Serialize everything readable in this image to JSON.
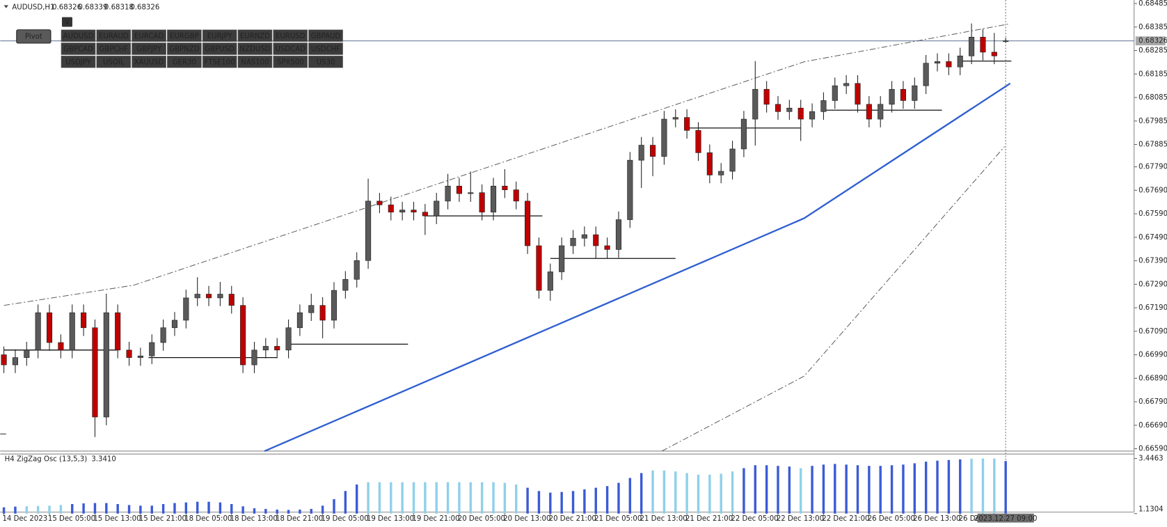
{
  "header": {
    "symbol": "AUDUSD,H1"
  },
  "toolbar": {
    "menu": "v",
    "pivot": "Pivot",
    "active_index": 0,
    "symbols": [
      "AUDUSD",
      "EURAUD",
      "EURCAD",
      "EURGBP",
      "EURJPY",
      "EURNZD",
      "EURUSD",
      "GBPAUD",
      "GBPCAD",
      "GBPCHF",
      "GBPJPY",
      "GBPNZD",
      "GBPUSD",
      "NZDUSD",
      "USDCAD",
      "USDCHF",
      "USDJPY",
      "USOIL",
      "XAUUSD",
      "GER30",
      "FTSE100",
      "NAS100",
      "SPX500",
      "US30"
    ]
  },
  "chart_data": [
    {
      "type": "candlestick",
      "up_color": "#5a5a5a",
      "down_color": "#c00000",
      "categories": [
        "14 Dec 2023",
        null,
        null,
        null,
        "15 Dec 05:00",
        null,
        null,
        null,
        "15 Dec 13:00",
        null,
        null,
        null,
        "15 Dec 21:00",
        null,
        null,
        null,
        "18 Dec 05:00",
        null,
        null,
        null,
        "18 Dec 13:00",
        null,
        null,
        null,
        "18 Dec 21:00",
        null,
        null,
        null,
        "19 Dec 05:00",
        null,
        null,
        null,
        "19 Dec 13:00",
        null,
        null,
        null,
        "19 Dec 21:00",
        null,
        null,
        null,
        "20 Dec 05:00",
        null,
        null,
        null,
        "20 Dec 13:00",
        null,
        null,
        null,
        "20 Dec 21:00",
        null,
        null,
        null,
        "21 Dec 05:00",
        null,
        null,
        null,
        "21 Dec 13:00",
        null,
        null,
        null,
        "21 Dec 21:00",
        null,
        null,
        null,
        "22 Dec 05:00",
        null,
        null,
        null,
        "22 Dec 13:00",
        null,
        null,
        null,
        "22 Dec 21:00",
        null,
        null,
        null,
        "26 Dec 05:00",
        null,
        null,
        null,
        "26 Dec 13:00",
        null,
        null,
        null,
        "26 Dec 21:00",
        null,
        null,
        null,
        "2023.12.27 09:00"
      ],
      "open": [
        0.6699,
        0.66947,
        0.66978,
        0.6701,
        0.67169,
        0.67042,
        0.6701,
        0.67169,
        0.67105,
        0.66725,
        0.67169,
        0.6701,
        0.66978,
        0.66985,
        0.67042,
        0.67105,
        0.67137,
        0.67232,
        0.67248,
        0.67232,
        0.67248,
        0.672,
        0.66947,
        0.6701,
        0.67026,
        0.6701,
        0.67105,
        0.67169,
        0.672,
        0.67137,
        0.67264,
        0.67311,
        0.67391,
        0.67644,
        0.67628,
        0.67597,
        0.67606,
        0.67597,
        0.67581,
        0.67644,
        0.67708,
        0.67676,
        0.6768,
        0.67597,
        0.67708,
        0.67692,
        0.67644,
        0.67454,
        0.67264,
        0.67343,
        0.67454,
        0.67486,
        0.67501,
        0.67454,
        0.67438,
        0.67565,
        0.67818,
        0.67882,
        0.67834,
        0.67993,
        0.68,
        0.67945,
        0.6785,
        0.67755,
        0.67771,
        0.67866,
        0.67993,
        0.6812,
        0.68056,
        0.68025,
        0.6804,
        0.67993,
        0.68025,
        0.68072,
        0.68135,
        0.68145,
        0.68056,
        0.67993,
        0.68056,
        0.6812,
        0.68072,
        0.68135,
        0.68231,
        0.68238,
        0.68215,
        0.68262,
        0.68342,
        0.68278,
        0.68326
      ],
      "high": [
        0.67025,
        0.67013,
        0.67045,
        0.67204,
        0.67204,
        0.67077,
        0.67204,
        0.67204,
        0.6714,
        0.6725,
        0.67204,
        0.67045,
        0.6702,
        0.67077,
        0.6714,
        0.67172,
        0.67267,
        0.6732,
        0.67283,
        0.673,
        0.67283,
        0.67235,
        0.67045,
        0.67061,
        0.67061,
        0.6714,
        0.67204,
        0.6725,
        0.67235,
        0.67299,
        0.67346,
        0.67426,
        0.6774,
        0.67679,
        0.67663,
        0.67641,
        0.67641,
        0.67632,
        0.67679,
        0.6776,
        0.67743,
        0.6777,
        0.67715,
        0.67743,
        0.6778,
        0.67727,
        0.67679,
        0.67489,
        0.67378,
        0.67489,
        0.67521,
        0.67536,
        0.67536,
        0.67489,
        0.676,
        0.67853,
        0.67917,
        0.67917,
        0.68028,
        0.68035,
        0.68035,
        0.6798,
        0.67885,
        0.67806,
        0.67901,
        0.68028,
        0.6824,
        0.68155,
        0.68091,
        0.68075,
        0.68075,
        0.6806,
        0.68107,
        0.6817,
        0.6818,
        0.6818,
        0.68091,
        0.68091,
        0.68155,
        0.68155,
        0.6817,
        0.68266,
        0.68273,
        0.68273,
        0.68297,
        0.684,
        0.68377,
        0.6836,
        0.68339
      ],
      "low": [
        0.66912,
        0.66912,
        0.66943,
        0.66975,
        0.67007,
        0.66975,
        0.66975,
        0.6707,
        0.6664,
        0.6669,
        0.66975,
        0.66943,
        0.66943,
        0.6695,
        0.67007,
        0.6707,
        0.67102,
        0.67197,
        0.67197,
        0.67197,
        0.67165,
        0.66912,
        0.66912,
        0.66975,
        0.66975,
        0.66975,
        0.6707,
        0.67134,
        0.6706,
        0.67102,
        0.67229,
        0.67276,
        0.67356,
        0.67593,
        0.67562,
        0.67562,
        0.67562,
        0.675,
        0.67546,
        0.67609,
        0.67641,
        0.67641,
        0.67562,
        0.67562,
        0.67657,
        0.67609,
        0.67419,
        0.67229,
        0.6722,
        0.67308,
        0.67419,
        0.67451,
        0.674,
        0.674,
        0.67403,
        0.6753,
        0.677,
        0.6775,
        0.67799,
        0.67958,
        0.6791,
        0.67815,
        0.6772,
        0.6772,
        0.67736,
        0.67831,
        0.6788,
        0.68021,
        0.6799,
        0.6799,
        0.679,
        0.67958,
        0.6799,
        0.68037,
        0.681,
        0.68021,
        0.67958,
        0.67958,
        0.68021,
        0.68037,
        0.68037,
        0.681,
        0.68196,
        0.6818,
        0.6818,
        0.68227,
        0.68243,
        0.68227,
        0.68318
      ],
      "close": [
        0.66947,
        0.66978,
        0.6701,
        0.67169,
        0.67042,
        0.6701,
        0.67169,
        0.67105,
        0.66725,
        0.67169,
        0.6701,
        0.66978,
        0.66985,
        0.67042,
        0.67105,
        0.67137,
        0.67232,
        0.67248,
        0.67232,
        0.67248,
        0.672,
        0.66947,
        0.6701,
        0.67026,
        0.6701,
        0.67105,
        0.67169,
        0.672,
        0.67137,
        0.67264,
        0.67311,
        0.67391,
        0.67644,
        0.67628,
        0.67597,
        0.67606,
        0.67597,
        0.67581,
        0.67644,
        0.67708,
        0.67676,
        0.6768,
        0.67597,
        0.67708,
        0.67692,
        0.67644,
        0.67454,
        0.67264,
        0.67343,
        0.67454,
        0.67486,
        0.67501,
        0.67454,
        0.67438,
        0.67565,
        0.67818,
        0.67882,
        0.67834,
        0.67993,
        0.68,
        0.67945,
        0.6785,
        0.67755,
        0.67771,
        0.67866,
        0.67993,
        0.6812,
        0.68056,
        0.68025,
        0.6804,
        0.67993,
        0.68025,
        0.68072,
        0.68135,
        0.68145,
        0.68056,
        0.67993,
        0.68056,
        0.6812,
        0.68072,
        0.68135,
        0.68231,
        0.68238,
        0.68215,
        0.68262,
        0.68342,
        0.68278,
        0.68262,
        0.68326
      ],
      "ylim": [
        0.6658,
        0.685
      ],
      "yticks": [
        0.68485,
        0.68385,
        0.68285,
        0.68185,
        0.68085,
        0.67985,
        0.67885,
        {
          "value": 0.6779,
          "label": "0.67790"
        },
        {
          "value": 0.6769,
          "label": "0.67690"
        },
        {
          "value": 0.6759,
          "label": "0.67590"
        },
        {
          "value": 0.6749,
          "label": "0.67490"
        },
        {
          "value": 0.6739,
          "label": "0.67390"
        },
        {
          "value": 0.6729,
          "label": "0.67290"
        },
        {
          "value": 0.6719,
          "label": "0.67190"
        },
        {
          "value": 0.6709,
          "label": "0.67090"
        },
        {
          "value": 0.6699,
          "label": "0.66990"
        },
        {
          "value": 0.6689,
          "label": "0.66890"
        },
        {
          "value": 0.6679,
          "label": "0.66790"
        },
        {
          "value": 0.6669,
          "label": "0.66690"
        },
        {
          "value": 0.6659,
          "label": "0.66590"
        }
      ],
      "overlays": [
        {
          "color": "#2f5fd0",
          "style": "solid",
          "x": [
            22.9,
            70.3,
            88.4
          ],
          "values": [
            0.6658,
            0.67571,
            0.68145
          ]
        },
        {
          "color": "#555555",
          "style": "dashdot",
          "x": [
            0,
            11.4,
            70.3,
            88.4
          ],
          "values": [
            0.672,
            0.67286,
            0.68237,
            0.68399
          ]
        },
        {
          "color": "#555555",
          "style": "dashdot",
          "x": [
            57.8,
            70.3,
            87.9
          ],
          "values": [
            0.6658,
            0.66899,
            0.67876
          ]
        }
      ],
      "levels": [
        {
          "from": 0,
          "to": 10,
          "value": 0.6701
        },
        {
          "from": 12.7,
          "to": 24,
          "value": 0.66978
        },
        {
          "from": 24.8,
          "to": 35.5,
          "value": 0.67035
        },
        {
          "from": 37,
          "to": 47.3,
          "value": 0.67581
        },
        {
          "from": 48,
          "to": 59,
          "value": 0.674
        },
        {
          "from": 59.8,
          "to": 70,
          "value": 0.67955
        },
        {
          "from": 71.9,
          "to": 82.4,
          "value": 0.68031
        },
        {
          "from": 84,
          "to": 88.5,
          "value": 0.6824
        }
      ]
    },
    {
      "type": "bar",
      "title": "H4 ZigZag Osc (13,5,3)",
      "values": [
        1.395,
        1.423,
        1.436,
        1.45,
        1.464,
        1.491,
        1.533,
        1.56,
        1.574,
        1.574,
        1.533,
        1.491,
        1.464,
        1.464,
        1.533,
        1.574,
        1.601,
        1.629,
        1.629,
        1.601,
        1.533,
        1.436,
        1.354,
        1.327,
        1.299,
        1.286,
        1.299,
        1.327,
        1.464,
        1.738,
        2.081,
        2.355,
        2.451,
        2.451,
        2.451,
        2.451,
        2.451,
        2.451,
        2.451,
        2.451,
        2.451,
        2.451,
        2.451,
        2.451,
        2.424,
        2.355,
        2.218,
        2.081,
        2.012,
        2.04,
        2.081,
        2.15,
        2.218,
        2.287,
        2.424,
        2.629,
        2.835,
        2.945,
        2.945,
        2.904,
        2.835,
        2.766,
        2.766,
        2.808,
        2.904,
        3.041,
        3.164,
        3.164,
        3.137,
        3.109,
        3.041,
        3.137,
        3.191,
        3.219,
        3.191,
        3.164,
        3.137,
        3.137,
        3.164,
        3.191,
        3.246,
        3.315,
        3.356,
        3.383,
        3.411,
        3.438,
        3.4463,
        3.4463,
        3.341
      ],
      "value_labels": [
        null,
        null,
        null,
        null,
        null,
        null,
        null,
        null,
        null,
        null,
        null,
        null,
        null,
        null,
        null,
        null,
        null,
        null,
        null,
        null,
        null,
        null,
        null,
        null,
        null,
        null,
        null,
        null,
        null,
        null,
        null,
        null,
        null,
        null,
        null,
        null,
        null,
        null,
        null,
        null,
        null,
        null,
        null,
        null,
        null,
        null,
        null,
        null,
        null,
        null,
        null,
        null,
        null,
        null,
        null,
        null,
        null,
        null,
        null,
        null,
        null,
        null,
        null,
        null,
        null,
        null,
        null,
        null,
        null,
        null,
        null,
        null,
        null,
        null,
        null,
        null,
        null,
        null,
        null,
        null,
        null,
        null,
        null,
        null,
        null,
        null,
        null,
        null,
        "3.3410"
      ],
      "colors": [
        "#3b5bd6",
        "#3b5bd6",
        "#8fd0ea",
        "#8fd0ea",
        "#8fd0ea",
        "#8fd0ea",
        "#3b5bd6",
        "#3b5bd6",
        "#3b5bd6",
        "#3b5bd6",
        "#3b5bd6",
        "#3b5bd6",
        "#3b5bd6",
        "#3b5bd6",
        "#3b5bd6",
        "#3b5bd6",
        "#3b5bd6",
        "#3b5bd6",
        "#3b5bd6",
        "#3b5bd6",
        "#3b5bd6",
        "#3b5bd6",
        "#3b5bd6",
        "#3b5bd6",
        "#3b5bd6",
        "#3b5bd6",
        "#3b5bd6",
        "#3b5bd6",
        "#3b5bd6",
        "#3b5bd6",
        "#3b5bd6",
        "#3b5bd6",
        "#8fd0ea",
        "#8fd0ea",
        "#8fd0ea",
        "#8fd0ea",
        "#8fd0ea",
        "#8fd0ea",
        "#8fd0ea",
        "#8fd0ea",
        "#8fd0ea",
        "#8fd0ea",
        "#8fd0ea",
        "#8fd0ea",
        "#8fd0ea",
        "#8fd0ea",
        "#3b5bd6",
        "#3b5bd6",
        "#3b5bd6",
        "#3b5bd6",
        "#3b5bd6",
        "#3b5bd6",
        "#3b5bd6",
        "#3b5bd6",
        "#3b5bd6",
        "#3b5bd6",
        "#3b5bd6",
        "#8fd0ea",
        "#8fd0ea",
        "#8fd0ea",
        "#8fd0ea",
        "#8fd0ea",
        "#8fd0ea",
        "#8fd0ea",
        "#8fd0ea",
        "#3b5bd6",
        "#3b5bd6",
        "#3b5bd6",
        "#3b5bd6",
        "#3b5bd6",
        "#8fd0ea",
        "#3b5bd6",
        "#3b5bd6",
        "#3b5bd6",
        "#3b5bd6",
        "#3b5bd6",
        "#3b5bd6",
        "#3b5bd6",
        "#3b5bd6",
        "#3b5bd6",
        "#3b5bd6",
        "#3b5bd6",
        "#3b5bd6",
        "#3b5bd6",
        "#3b5bd6",
        "#8fd0ea",
        "#8fd0ea",
        "#8fd0ea",
        "#3b5bd6"
      ],
      "ylim": [
        1.1304,
        3.4463
      ],
      "yticks": [
        3.4463,
        1.1304
      ]
    }
  ]
}
